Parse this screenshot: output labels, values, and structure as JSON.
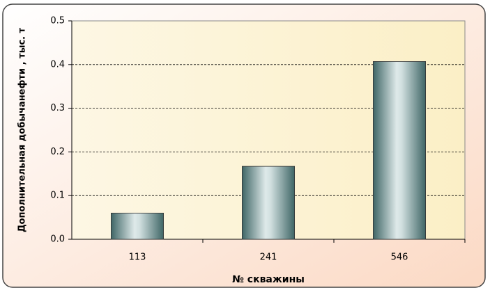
{
  "chart_data": {
    "type": "bar",
    "categories": [
      "113",
      "241",
      "546"
    ],
    "values": [
      0.06,
      0.167,
      0.407
    ],
    "color": "#3f6666",
    "xlabel": "№ скважины",
    "ylabel": "Дополнительная добычанефти , тыс. т",
    "ylim": [
      0,
      0.5
    ],
    "yticks": [
      {
        "value": 0,
        "label": "0.0"
      },
      0.1,
      0.2,
      0.3,
      0.4,
      0.5
    ],
    "grid": true
  }
}
